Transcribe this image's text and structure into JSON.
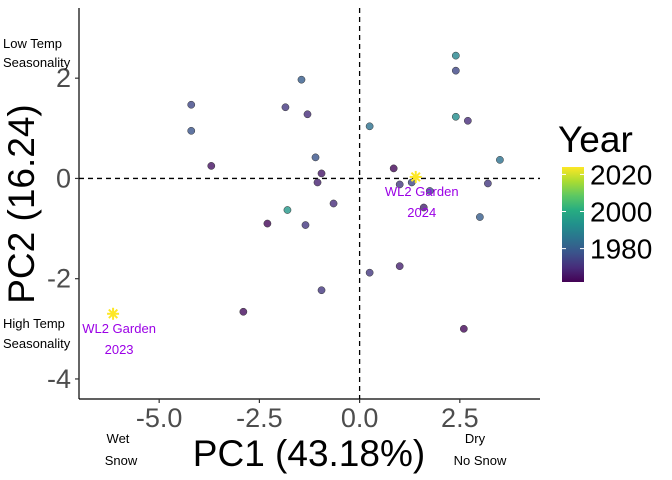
{
  "chart_data": {
    "type": "scatter",
    "title": "",
    "xlabel": "PC1 (43.18%)",
    "ylabel": "PC2 (16.24)",
    "xlim": [
      -7,
      4.5
    ],
    "ylim": [
      -4.4,
      3.4
    ],
    "x_ticks": [
      -5.0,
      -2.5,
      0.0,
      2.5
    ],
    "x_tick_labels": [
      "-5.0",
      "-2.5",
      "0.0",
      "2.5"
    ],
    "y_ticks": [
      -4,
      -2,
      0,
      2
    ],
    "y_tick_labels": [
      "-4",
      "-2",
      "0",
      "2"
    ],
    "grid": false,
    "reference_lines": {
      "x": 0,
      "y": 0,
      "style": "dashed"
    },
    "legend": {
      "title": "Year",
      "placement": "right",
      "type": "colorbar",
      "palette": "viridis",
      "range": [
        1962,
        2024
      ],
      "ticks": [
        1980,
        2000,
        2020
      ],
      "tick_labels": [
        "1980",
        "2000",
        "2020"
      ]
    },
    "corner_annotations": {
      "top_left": [
        "Low Temp",
        "Seasonality"
      ],
      "bottom_left": [
        "High Temp",
        "Seasonality"
      ],
      "x_left": [
        "Wet",
        "Snow"
      ],
      "x_right": [
        "Dry",
        "No Snow"
      ]
    },
    "points": [
      {
        "x": -4.2,
        "y": 1.47,
        "year": 1975
      },
      {
        "x": -4.2,
        "y": 0.95,
        "year": 1978
      },
      {
        "x": -3.7,
        "y": 0.25,
        "year": 1965
      },
      {
        "x": -1.45,
        "y": 1.97,
        "year": 1980
      },
      {
        "x": -1.85,
        "y": 1.42,
        "year": 1972
      },
      {
        "x": -1.3,
        "y": 1.28,
        "year": 1970
      },
      {
        "x": -1.1,
        "y": 0.42,
        "year": 1978
      },
      {
        "x": -0.95,
        "y": 0.1,
        "year": 1966
      },
      {
        "x": -1.05,
        "y": -0.08,
        "year": 1968
      },
      {
        "x": -0.65,
        "y": -0.5,
        "year": 1970
      },
      {
        "x": -1.35,
        "y": -0.93,
        "year": 1972
      },
      {
        "x": -1.8,
        "y": -0.63,
        "year": 1995
      },
      {
        "x": -2.3,
        "y": -0.9,
        "year": 1963
      },
      {
        "x": -0.95,
        "y": -2.23,
        "year": 1972
      },
      {
        "x": -2.9,
        "y": -2.66,
        "year": 1964
      },
      {
        "x": 0.25,
        "y": 1.04,
        "year": 1985
      },
      {
        "x": 0.85,
        "y": 0.2,
        "year": 1963
      },
      {
        "x": 1.0,
        "y": -0.12,
        "year": 1972
      },
      {
        "x": 1.3,
        "y": -0.08,
        "year": 1975
      },
      {
        "x": 1.75,
        "y": -0.25,
        "year": 1978
      },
      {
        "x": 1.6,
        "y": -0.58,
        "year": 1968
      },
      {
        "x": 2.4,
        "y": 2.45,
        "year": 1990
      },
      {
        "x": 2.4,
        "y": 2.15,
        "year": 1975
      },
      {
        "x": 2.4,
        "y": 1.23,
        "year": 1992
      },
      {
        "x": 2.7,
        "y": 1.15,
        "year": 1970
      },
      {
        "x": 3.5,
        "y": 0.37,
        "year": 1985
      },
      {
        "x": 3.2,
        "y": -0.1,
        "year": 1972
      },
      {
        "x": 3.0,
        "y": -0.77,
        "year": 1980
      },
      {
        "x": 0.25,
        "y": -1.88,
        "year": 1972
      },
      {
        "x": 1.0,
        "y": -1.75,
        "year": 1968
      },
      {
        "x": 2.6,
        "y": -3.0,
        "year": 1963
      }
    ],
    "highlighted_points": [
      {
        "x": -6.15,
        "y": -2.7,
        "year": 2023,
        "label_lines": [
          "WL2 Garden",
          "2023"
        ]
      },
      {
        "x": 1.4,
        "y": 0.03,
        "year": 2024,
        "label_lines": [
          "WL2 Garden",
          "2024"
        ]
      }
    ],
    "colors": {
      "axis": "#000000",
      "tick_label": "#4d4d4d",
      "highlight_label": "#9b00e6",
      "highlight_marker": "#fde725",
      "background": "#ffffff"
    }
  }
}
